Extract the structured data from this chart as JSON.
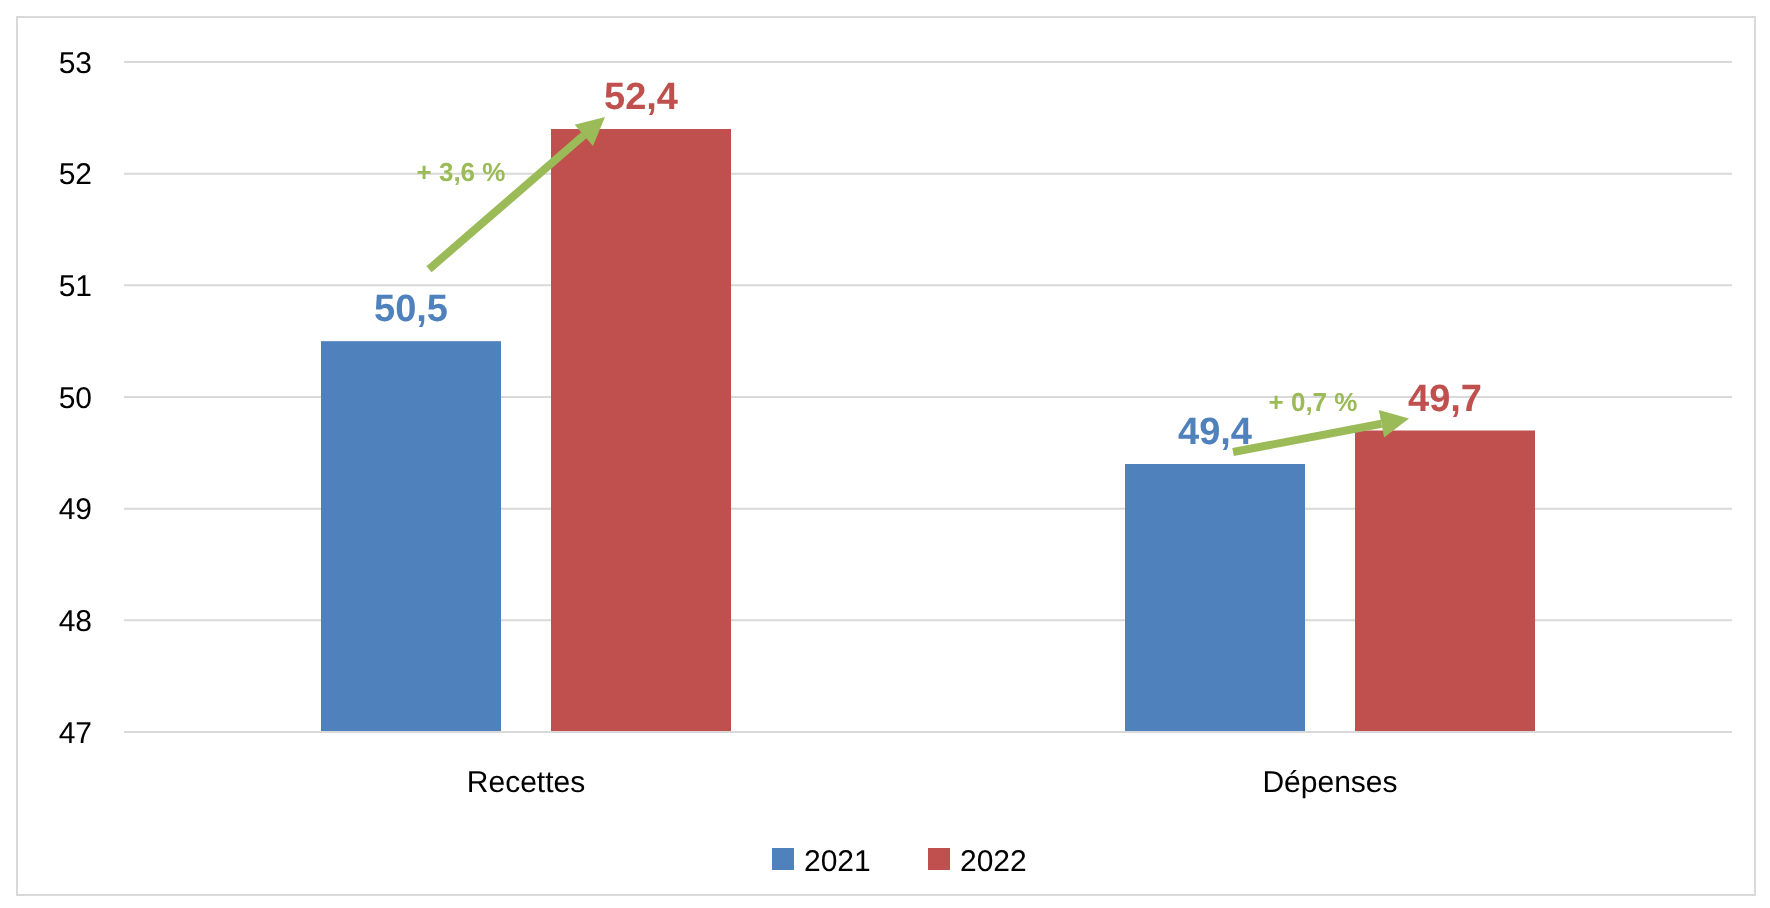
{
  "chart_data": {
    "type": "bar",
    "categories": [
      "Recettes",
      "Dépenses"
    ],
    "series": [
      {
        "name": "2021",
        "color": "#4f81bd",
        "values": [
          50.5,
          49.4
        ],
        "value_labels": [
          "50,5",
          "49,4"
        ]
      },
      {
        "name": "2022",
        "color": "#c0504d",
        "values": [
          52.4,
          49.7
        ],
        "value_labels": [
          "52,4",
          "49,7"
        ]
      }
    ],
    "ylim": [
      47,
      53
    ],
    "yticks": [
      47,
      48,
      49,
      50,
      51,
      52,
      53
    ],
    "grid": "y",
    "legend": "bottom",
    "annotations": [
      "+ 3,6 %",
      "+ 0,7 %"
    ]
  }
}
